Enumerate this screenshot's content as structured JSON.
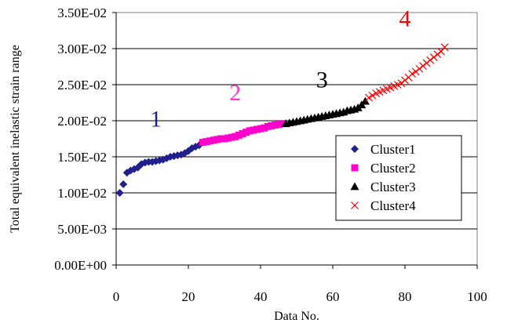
{
  "chart_data": {
    "type": "scatter",
    "title": "",
    "xlabel": "Data No.",
    "ylabel": "Total equivalent inelastic strain range",
    "xlim": [
      0,
      100
    ],
    "ylim": [
      0,
      0.035
    ],
    "x_ticks": [
      "0",
      "20",
      "40",
      "60",
      "80",
      "100"
    ],
    "y_ticks": [
      "0.00E+00",
      "5.00E-03",
      "1.00E-02",
      "1.50E-02",
      "2.00E-02",
      "2.50E-02",
      "3.00E-02",
      "3.50E-02"
    ],
    "x_tick_values": [
      0,
      20,
      40,
      60,
      80,
      100
    ],
    "y_tick_values": [
      0,
      0.005,
      0.01,
      0.015,
      0.02,
      0.025,
      0.03,
      0.035
    ],
    "grid": {
      "horizontal": true,
      "vertical": false
    },
    "legend_position": "right",
    "series": [
      {
        "name": "Cluster1",
        "marker": "diamond",
        "color": "#1f1f8f",
        "x": [
          1,
          2,
          3,
          4,
          5,
          6,
          7,
          8,
          9,
          10,
          11,
          12,
          13,
          14,
          15,
          16,
          17,
          18,
          19,
          20,
          21,
          22,
          23
        ],
        "y": [
          0.01,
          0.0112,
          0.0128,
          0.0131,
          0.0133,
          0.0135,
          0.014,
          0.0142,
          0.0143,
          0.0143,
          0.0144,
          0.0145,
          0.0146,
          0.0148,
          0.015,
          0.0151,
          0.0152,
          0.0153,
          0.0155,
          0.0158,
          0.0162,
          0.0164,
          0.0166
        ]
      },
      {
        "name": "Cluster2",
        "marker": "square",
        "color": "#ff00cc",
        "x": [
          24,
          25,
          26,
          27,
          28,
          29,
          30,
          31,
          32,
          33,
          34,
          35,
          36,
          37,
          38,
          39,
          40,
          41,
          42,
          43,
          44,
          45,
          46
        ],
        "y": [
          0.017,
          0.0171,
          0.0172,
          0.0173,
          0.0174,
          0.0175,
          0.0175,
          0.0176,
          0.0177,
          0.0178,
          0.018,
          0.0182,
          0.0184,
          0.0186,
          0.0187,
          0.0188,
          0.0189,
          0.019,
          0.0192,
          0.0193,
          0.0194,
          0.0195,
          0.0196
        ]
      },
      {
        "name": "Cluster3",
        "marker": "triangle",
        "color": "#000000",
        "x": [
          47,
          48,
          49,
          50,
          51,
          52,
          53,
          54,
          55,
          56,
          57,
          58,
          59,
          60,
          61,
          62,
          63,
          64,
          65,
          66,
          67,
          68,
          69
        ],
        "y": [
          0.0196,
          0.0197,
          0.0198,
          0.0199,
          0.02,
          0.0201,
          0.0202,
          0.0203,
          0.0204,
          0.0205,
          0.0206,
          0.0207,
          0.0208,
          0.0209,
          0.021,
          0.0211,
          0.0212,
          0.0214,
          0.0215,
          0.0216,
          0.0218,
          0.0222,
          0.0227
        ]
      },
      {
        "name": "Cluster4",
        "marker": "x",
        "color": "#ff0000",
        "x": [
          70,
          71,
          72,
          73,
          74,
          75,
          76,
          77,
          78,
          79,
          80,
          81,
          82,
          83,
          84,
          85,
          86,
          87,
          88,
          89,
          90,
          91
        ],
        "y": [
          0.0232,
          0.0235,
          0.0238,
          0.024,
          0.0242,
          0.0244,
          0.0246,
          0.0248,
          0.025,
          0.0252,
          0.0256,
          0.026,
          0.0265,
          0.0268,
          0.0272,
          0.0276,
          0.028,
          0.0284,
          0.0288,
          0.0292,
          0.0296,
          0.0302
        ]
      }
    ],
    "annotations": [
      {
        "text": "1",
        "x": 11,
        "y": 0.0192,
        "color": "#1f1f8f"
      },
      {
        "text": "2",
        "x": 33,
        "y": 0.0228,
        "color": "#ff33cc"
      },
      {
        "text": "3",
        "x": 57,
        "y": 0.0246,
        "color": "#000000"
      },
      {
        "text": "4",
        "x": 80,
        "y": 0.0331,
        "color": "#ff0000"
      }
    ]
  }
}
